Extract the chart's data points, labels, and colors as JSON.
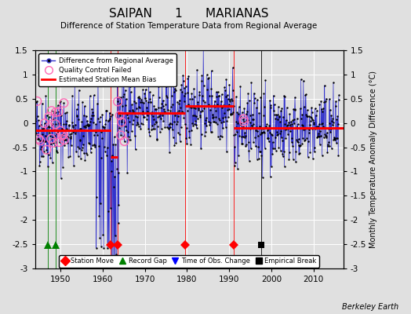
{
  "title": "SAIPAN      1      MARIANAS",
  "subtitle": "Difference of Station Temperature Data from Regional Average",
  "ylabel": "Monthly Temperature Anomaly Difference (°C)",
  "xlabel_credit": "Berkeley Earth",
  "ylim": [
    -3.0,
    1.5
  ],
  "xlim": [
    1944,
    2017
  ],
  "yticks": [
    -3,
    -2.5,
    -2,
    -1.5,
    -1,
    -0.5,
    0,
    0.5,
    1,
    1.5
  ],
  "xticks": [
    1950,
    1960,
    1970,
    1980,
    1990,
    2000,
    2010
  ],
  "bg_color": "#e0e0e0",
  "grid_color": "#ffffff",
  "line_color": "#3333cc",
  "dot_color": "#000000",
  "bias_color": "#ff0000",
  "qc_color": "#ff69b4",
  "station_move_color": "#ff0000",
  "record_gap_color": "#008000",
  "time_obs_color": "#0000ff",
  "empirical_color": "#000000",
  "station_moves": [
    1962.0,
    1963.5,
    1979.5,
    1991.0
  ],
  "record_gaps": [
    1947.0,
    1949.0
  ],
  "time_obs_changes": [],
  "empirical_breaks": [
    1997.5
  ],
  "bias_segments": [
    {
      "x": [
        1944,
        1962.0
      ],
      "y": [
        -0.15,
        -0.15
      ]
    },
    {
      "x": [
        1962.0,
        1963.5
      ],
      "y": [
        -0.7,
        -0.7
      ]
    },
    {
      "x": [
        1963.5,
        1979.5
      ],
      "y": [
        0.2,
        0.2
      ]
    },
    {
      "x": [
        1979.5,
        1991.0
      ],
      "y": [
        0.35,
        0.35
      ]
    },
    {
      "x": [
        1991.0,
        2017
      ],
      "y": [
        -0.1,
        -0.1
      ]
    }
  ],
  "seed": 42,
  "n_points": 864
}
